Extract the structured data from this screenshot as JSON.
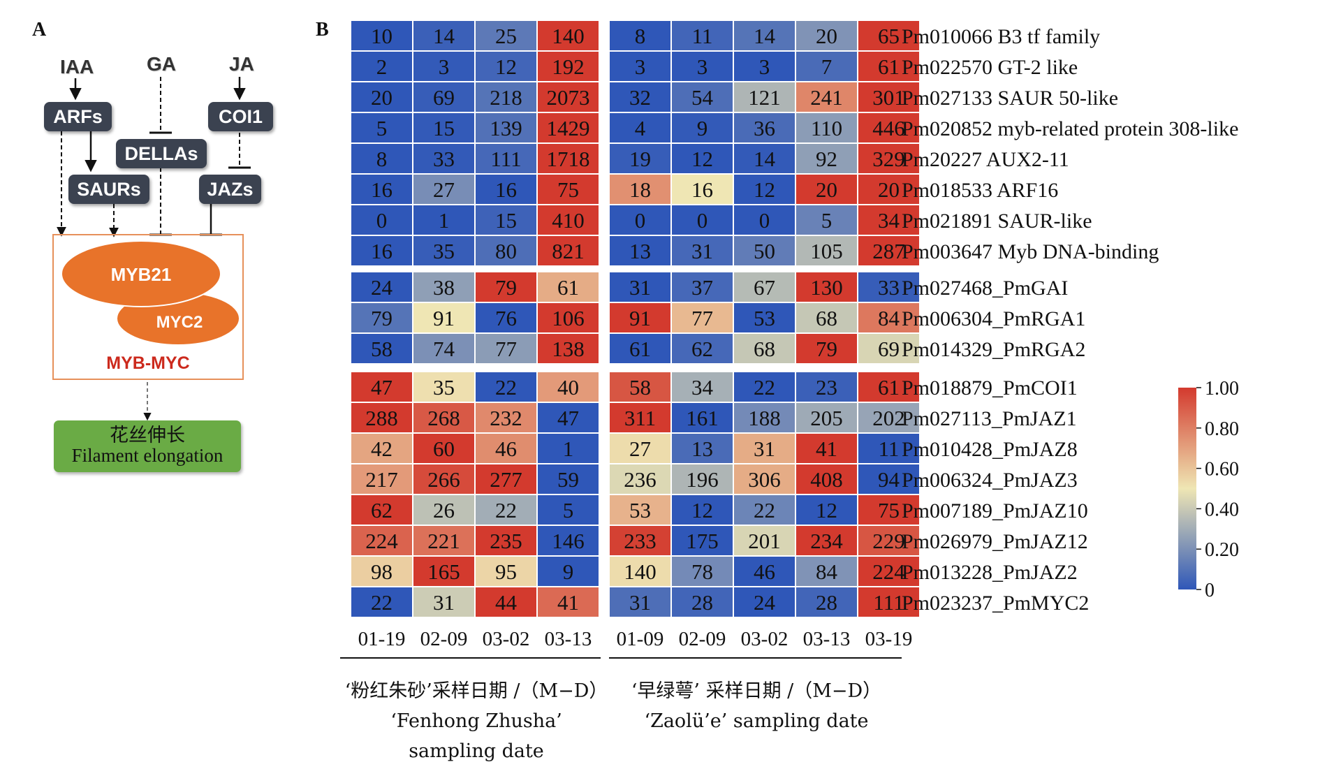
{
  "panel_a": {
    "label": "A",
    "hormones": [
      "IAA",
      "GA",
      "JA"
    ],
    "boxes": [
      "ARFs",
      "COI1",
      "DELLAs",
      "SAURs",
      "JAZs"
    ],
    "complex": {
      "myb": "MYB21",
      "myc": "MYC2",
      "label": "MYB-MYC"
    },
    "output": {
      "zh": "花丝伸长",
      "en": "Filament elongation"
    },
    "colors": {
      "box": "#3b4250",
      "ellipse": "#e8732a",
      "complex_label": "#cc2a1d",
      "output_box": "#6aab45",
      "frame": "#e6905a"
    }
  },
  "chart_data": {
    "type": "heatmap",
    "label": "B",
    "genes": [
      "Pm010066 B3 tf family",
      "Pm022570 GT-2 like",
      "Pm027133 SAUR 50-like",
      "Pm020852 myb-related protein 308-like",
      "Pm20227 AUX2-11",
      "Pm018533 ARF16",
      "Pm021891 SAUR-like",
      "Pm003647 Myb DNA-binding",
      "Pm027468_PmGAI",
      "Pm006304_PmRGA1",
      "Pm014329_PmRGA2",
      "Pm018879_PmCOI1",
      "Pm027113_PmJAZ1",
      "Pm010428_PmJAZ8",
      "Pm006324_PmJAZ3",
      "Pm007189_PmJAZ10",
      "Pm026979_PmJAZ12",
      "Pm013228_PmJAZ2",
      "Pm023237_PmMYC2"
    ],
    "row_groups": [
      [
        0,
        7
      ],
      [
        8,
        10
      ],
      [
        11,
        18
      ]
    ],
    "cultivars": [
      {
        "dates": [
          "01-19",
          "02-09",
          "03-02",
          "03-13"
        ],
        "caption": [
          "‘粉红朱砂’采样日期 /（M−D）",
          "‘Fenhong Zhusha’",
          "sampling date"
        ],
        "values": [
          [
            10,
            14,
            25,
            140
          ],
          [
            2,
            3,
            12,
            192
          ],
          [
            20,
            69,
            218,
            2073
          ],
          [
            5,
            15,
            139,
            1429
          ],
          [
            8,
            33,
            111,
            1718
          ],
          [
            16,
            27,
            16,
            75
          ],
          [
            0,
            1,
            15,
            410
          ],
          [
            16,
            35,
            80,
            821
          ],
          [
            24,
            38,
            79,
            61
          ],
          [
            79,
            91,
            76,
            106
          ],
          [
            58,
            74,
            77,
            138
          ],
          [
            47,
            35,
            22,
            40
          ],
          [
            288,
            268,
            232,
            47
          ],
          [
            42,
            60,
            46,
            1
          ],
          [
            217,
            266,
            277,
            59
          ],
          [
            62,
            26,
            22,
            5
          ],
          [
            224,
            221,
            235,
            146
          ],
          [
            98,
            165,
            95,
            9
          ],
          [
            22,
            31,
            44,
            41
          ]
        ],
        "normalized": [
          [
            0.0,
            0.03,
            0.12,
            1.0
          ],
          [
            0.0,
            0.01,
            0.05,
            1.0
          ],
          [
            0.0,
            0.02,
            0.1,
            1.0
          ],
          [
            0.0,
            0.01,
            0.09,
            1.0
          ],
          [
            0.0,
            0.01,
            0.06,
            1.0
          ],
          [
            0.0,
            0.19,
            0.0,
            1.0
          ],
          [
            0.0,
            0.0,
            0.04,
            1.0
          ],
          [
            0.0,
            0.02,
            0.08,
            1.0
          ],
          [
            0.0,
            0.25,
            1.0,
            0.67
          ],
          [
            0.1,
            0.5,
            0.0,
            1.0
          ],
          [
            0.0,
            0.2,
            0.24,
            1.0
          ],
          [
            1.0,
            0.52,
            0.0,
            0.72
          ],
          [
            1.0,
            0.91,
            0.77,
            0.0
          ],
          [
            0.69,
            1.0,
            0.76,
            0.0
          ],
          [
            0.72,
            0.95,
            1.0,
            0.0
          ],
          [
            1.0,
            0.37,
            0.3,
            0.0
          ],
          [
            0.88,
            0.84,
            1.0,
            0.0
          ],
          [
            0.57,
            1.0,
            0.55,
            0.0
          ],
          [
            0.0,
            0.41,
            1.0,
            0.86
          ]
        ]
      },
      {
        "dates": [
          "01-09",
          "02-09",
          "03-02",
          "03-13",
          "03-19"
        ],
        "caption": [
          "‘早绿萼’ 采样日期 /（M−D）",
          "‘Zaolü’e’ sampling date"
        ],
        "values": [
          [
            8,
            11,
            14,
            20,
            65
          ],
          [
            3,
            3,
            3,
            7,
            61
          ],
          [
            32,
            54,
            121,
            241,
            301
          ],
          [
            4,
            9,
            36,
            110,
            446
          ],
          [
            19,
            12,
            14,
            92,
            329
          ],
          [
            18,
            16,
            12,
            20,
            20
          ],
          [
            0,
            0,
            0,
            5,
            34
          ],
          [
            13,
            31,
            50,
            105,
            287
          ],
          [
            31,
            37,
            67,
            130,
            33
          ],
          [
            91,
            77,
            53,
            68,
            84
          ],
          [
            61,
            62,
            68,
            79,
            69
          ],
          [
            58,
            34,
            22,
            23,
            61
          ],
          [
            311,
            161,
            188,
            205,
            202
          ],
          [
            27,
            13,
            31,
            41,
            11
          ],
          [
            236,
            196,
            306,
            408,
            94
          ],
          [
            53,
            12,
            22,
            12,
            75
          ],
          [
            233,
            175,
            201,
            234,
            229
          ],
          [
            140,
            78,
            46,
            84,
            224
          ],
          [
            31,
            28,
            24,
            28,
            111
          ]
        ],
        "normalized": [
          [
            0.0,
            0.05,
            0.1,
            0.21,
            1.0
          ],
          [
            0.0,
            0.0,
            0.0,
            0.07,
            1.0
          ],
          [
            0.0,
            0.08,
            0.33,
            0.78,
            1.0
          ],
          [
            0.0,
            0.01,
            0.07,
            0.24,
            1.0
          ],
          [
            0.02,
            0.0,
            0.01,
            0.25,
            1.0
          ],
          [
            0.75,
            0.5,
            0.0,
            1.0,
            1.0
          ],
          [
            0.0,
            0.0,
            0.0,
            0.15,
            1.0
          ],
          [
            0.0,
            0.06,
            0.13,
            0.34,
            1.0
          ],
          [
            0.0,
            0.06,
            0.35,
            1.0,
            0.02
          ],
          [
            1.0,
            0.63,
            0.0,
            0.39,
            0.82
          ],
          [
            0.0,
            0.06,
            0.39,
            1.0,
            0.44
          ],
          [
            0.92,
            0.31,
            0.0,
            0.03,
            1.0
          ],
          [
            1.0,
            0.0,
            0.18,
            0.29,
            0.27
          ],
          [
            0.53,
            0.07,
            0.67,
            1.0,
            0.0
          ],
          [
            0.45,
            0.33,
            0.67,
            1.0,
            0.0
          ],
          [
            0.65,
            0.0,
            0.16,
            0.0,
            1.0
          ],
          [
            0.98,
            0.0,
            0.44,
            1.0,
            0.92
          ],
          [
            0.53,
            0.18,
            0.0,
            0.21,
            1.0
          ],
          [
            0.08,
            0.05,
            0.0,
            0.05,
            1.0
          ]
        ]
      }
    ],
    "colorbar": {
      "ticks": [
        "1.00",
        "0.80",
        "0.60",
        "0.40",
        "0.20",
        "0"
      ],
      "min": 0,
      "max": 1
    },
    "colors": {
      "low": "#2f57b8",
      "mid": "#efe6b4",
      "high": "#d33a2e"
    }
  }
}
